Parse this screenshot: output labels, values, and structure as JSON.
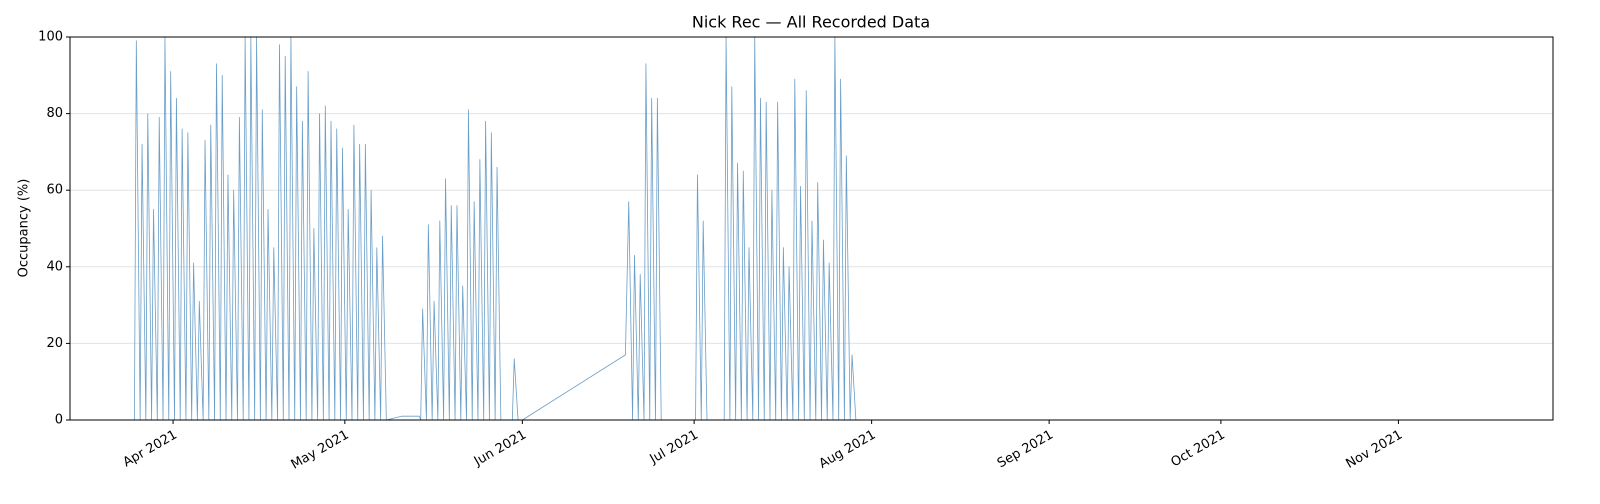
{
  "chart_data": {
    "type": "line",
    "title": "Nick Rec — All Recorded Data",
    "y_label": "Occupancy (%)",
    "color": "#6a9ec8",
    "grid": true,
    "xlim": [
      "2021-03-14 00:00",
      "2021-11-28 00:00"
    ],
    "xticks": [
      {
        "value": "2021-04-01 00:00",
        "label": "Apr 2021"
      },
      {
        "value": "2021-05-01 00:00",
        "label": "May 2021"
      },
      {
        "value": "2021-06-01 00:00",
        "label": "Jun 2021"
      },
      {
        "value": "2021-07-01 00:00",
        "label": "Jul 2021"
      },
      {
        "value": "2021-08-01 00:00",
        "label": "Aug 2021"
      },
      {
        "value": "2021-09-01 00:00",
        "label": "Sep 2021"
      },
      {
        "value": "2021-10-01 00:00",
        "label": "Oct 2021"
      },
      {
        "value": "2021-11-01 00:00",
        "label": "Nov 2021"
      }
    ],
    "ylim": [
      0,
      100
    ],
    "yticks": [
      0,
      20,
      40,
      60,
      80,
      100
    ],
    "x": [
      "2021-03-25 06:00",
      "2021-03-25 14:00",
      "2021-03-26 06:00",
      "2021-03-26 14:00",
      "2021-03-27 06:00",
      "2021-03-27 14:00",
      "2021-03-28 06:00",
      "2021-03-28 14:00",
      "2021-03-29 06:00",
      "2021-03-29 14:00",
      "2021-03-30 06:00",
      "2021-03-30 14:00",
      "2021-03-31 06:00",
      "2021-03-31 14:00",
      "2021-04-01 06:00",
      "2021-04-01 14:00",
      "2021-04-02 06:00",
      "2021-04-02 14:00",
      "2021-04-03 06:00",
      "2021-04-03 14:00",
      "2021-04-04 06:00",
      "2021-04-04 14:00",
      "2021-04-05 06:00",
      "2021-04-05 14:00",
      "2021-04-06 06:00",
      "2021-04-06 14:00",
      "2021-04-07 06:00",
      "2021-04-07 14:00",
      "2021-04-08 06:00",
      "2021-04-08 14:00",
      "2021-04-09 06:00",
      "2021-04-09 14:00",
      "2021-04-10 06:00",
      "2021-04-10 14:00",
      "2021-04-11 06:00",
      "2021-04-11 14:00",
      "2021-04-12 06:00",
      "2021-04-12 14:00",
      "2021-04-13 06:00",
      "2021-04-13 14:00",
      "2021-04-14 06:00",
      "2021-04-14 14:00",
      "2021-04-15 06:00",
      "2021-04-15 14:00",
      "2021-04-16 06:00",
      "2021-04-16 14:00",
      "2021-04-17 06:00",
      "2021-04-17 14:00",
      "2021-04-18 06:00",
      "2021-04-18 14:00",
      "2021-04-19 06:00",
      "2021-04-19 14:00",
      "2021-04-20 06:00",
      "2021-04-20 14:00",
      "2021-04-21 06:00",
      "2021-04-21 14:00",
      "2021-04-22 06:00",
      "2021-04-22 14:00",
      "2021-04-23 06:00",
      "2021-04-23 14:00",
      "2021-04-24 06:00",
      "2021-04-24 14:00",
      "2021-04-25 06:00",
      "2021-04-25 14:00",
      "2021-04-26 06:00",
      "2021-04-26 14:00",
      "2021-04-27 06:00",
      "2021-04-27 14:00",
      "2021-04-28 06:00",
      "2021-04-28 14:00",
      "2021-04-29 06:00",
      "2021-04-29 14:00",
      "2021-04-30 06:00",
      "2021-04-30 14:00",
      "2021-05-01 06:00",
      "2021-05-01 14:00",
      "2021-05-02 06:00",
      "2021-05-02 14:00",
      "2021-05-03 06:00",
      "2021-05-03 14:00",
      "2021-05-04 06:00",
      "2021-05-04 14:00",
      "2021-05-05 06:00",
      "2021-05-05 14:00",
      "2021-05-06 06:00",
      "2021-05-06 14:00",
      "2021-05-07 06:00",
      "2021-05-07 14:00",
      "2021-05-08 06:00",
      "2021-05-11 00:00",
      "2021-05-14 00:00",
      "2021-05-14 06:00",
      "2021-05-14 14:00",
      "2021-05-15 06:00",
      "2021-05-15 14:00",
      "2021-05-16 06:00",
      "2021-05-16 14:00",
      "2021-05-17 06:00",
      "2021-05-17 14:00",
      "2021-05-18 06:00",
      "2021-05-18 14:00",
      "2021-05-19 06:00",
      "2021-05-19 14:00",
      "2021-05-20 06:00",
      "2021-05-20 14:00",
      "2021-05-21 06:00",
      "2021-05-21 14:00",
      "2021-05-22 06:00",
      "2021-05-22 14:00",
      "2021-05-23 06:00",
      "2021-05-23 14:00",
      "2021-05-24 06:00",
      "2021-05-24 14:00",
      "2021-05-25 06:00",
      "2021-05-25 14:00",
      "2021-05-26 06:00",
      "2021-05-26 14:00",
      "2021-05-27 06:00",
      "2021-05-27 14:00",
      "2021-05-28 06:00",
      "2021-05-30 06:00",
      "2021-05-30 14:00",
      "2021-05-31 06:00",
      "2021-06-01 00:00",
      "2021-06-19 00:00",
      "2021-06-19 14:00",
      "2021-06-20 06:00",
      "2021-06-20 14:00",
      "2021-06-21 06:00",
      "2021-06-21 14:00",
      "2021-06-22 06:00",
      "2021-06-22 14:00",
      "2021-06-23 06:00",
      "2021-06-23 14:00",
      "2021-06-24 06:00",
      "2021-06-24 14:00",
      "2021-06-25 06:00",
      "2021-07-01 06:00",
      "2021-07-01 14:00",
      "2021-07-02 06:00",
      "2021-07-02 14:00",
      "2021-07-03 06:00",
      "2021-07-06 06:00",
      "2021-07-06 14:00",
      "2021-07-07 06:00",
      "2021-07-07 14:00",
      "2021-07-08 06:00",
      "2021-07-08 14:00",
      "2021-07-09 06:00",
      "2021-07-09 14:00",
      "2021-07-10 06:00",
      "2021-07-10 14:00",
      "2021-07-11 06:00",
      "2021-07-11 14:00",
      "2021-07-12 06:00",
      "2021-07-12 14:00",
      "2021-07-13 06:00",
      "2021-07-13 14:00",
      "2021-07-14 06:00",
      "2021-07-14 14:00",
      "2021-07-15 06:00",
      "2021-07-15 14:00",
      "2021-07-16 06:00",
      "2021-07-16 14:00",
      "2021-07-17 06:00",
      "2021-07-17 14:00",
      "2021-07-18 06:00",
      "2021-07-18 14:00",
      "2021-07-19 06:00",
      "2021-07-19 14:00",
      "2021-07-20 06:00",
      "2021-07-20 14:00",
      "2021-07-21 06:00",
      "2021-07-21 14:00",
      "2021-07-22 06:00",
      "2021-07-22 14:00",
      "2021-07-23 06:00",
      "2021-07-23 14:00",
      "2021-07-24 06:00",
      "2021-07-24 14:00",
      "2021-07-25 06:00",
      "2021-07-25 14:00",
      "2021-07-26 06:00",
      "2021-07-26 14:00",
      "2021-07-27 06:00",
      "2021-07-27 14:00",
      "2021-07-28 06:00",
      "2021-07-28 14:00",
      "2021-07-29 06:00",
      "2021-11-16 00:00"
    ],
    "values": [
      0,
      99,
      0,
      72,
      0,
      80,
      0,
      55,
      0,
      79,
      0,
      100,
      0,
      91,
      0,
      84,
      0,
      76,
      0,
      75,
      0,
      41,
      0,
      31,
      0,
      73,
      0,
      77,
      0,
      93,
      0,
      90,
      0,
      64,
      0,
      60,
      0,
      79,
      0,
      100,
      0,
      100,
      0,
      100,
      0,
      81,
      0,
      55,
      0,
      45,
      0,
      98,
      0,
      95,
      0,
      100,
      0,
      87,
      0,
      78,
      0,
      91,
      0,
      50,
      0,
      80,
      0,
      82,
      0,
      78,
      0,
      76,
      0,
      71,
      0,
      55,
      0,
      77,
      0,
      72,
      0,
      72,
      0,
      60,
      0,
      45,
      0,
      48,
      0,
      1,
      1,
      0,
      29,
      0,
      51,
      0,
      31,
      0,
      52,
      0,
      63,
      0,
      56,
      0,
      56,
      0,
      35,
      0,
      81,
      0,
      57,
      0,
      68,
      0,
      78,
      0,
      75,
      0,
      66,
      0,
      0,
      16,
      0,
      0,
      17,
      57,
      0,
      43,
      0,
      38,
      0,
      93,
      0,
      84,
      0,
      84,
      0,
      0,
      64,
      0,
      52,
      0,
      0,
      100,
      0,
      87,
      0,
      67,
      0,
      65,
      0,
      45,
      0,
      100,
      0,
      84,
      0,
      83,
      0,
      60,
      0,
      83,
      0,
      45,
      0,
      40,
      0,
      89,
      0,
      61,
      0,
      86,
      0,
      52,
      0,
      62,
      0,
      47,
      0,
      41,
      0,
      100,
      0,
      89,
      0,
      69,
      0,
      17,
      0,
      0
    ]
  }
}
